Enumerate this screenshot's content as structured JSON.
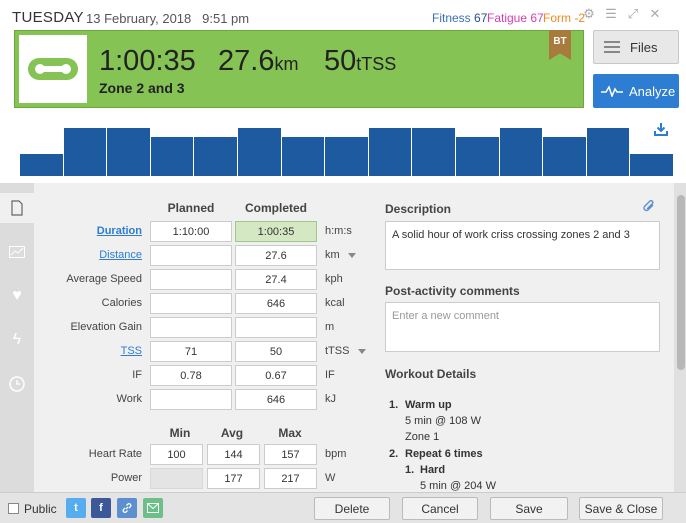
{
  "header": {
    "day": "TUESDAY",
    "date": "13 February, 2018",
    "time": "9:51 pm",
    "fitness_label": "Fitness",
    "fitness_value": "67",
    "fatigue_label": "Fatigue",
    "fatigue_value": "67",
    "form_label": "Form",
    "form_value": "-2",
    "icons": [
      "gear-icon",
      "menu-icon",
      "expand-icon",
      "close-icon"
    ]
  },
  "summary": {
    "duration": "1:00:35",
    "distance": "27.6",
    "distance_unit": "km",
    "tss": "50",
    "tss_unit": "tTSS",
    "title": "Zone 2 and 3",
    "badge": "BT",
    "sport_icon": "bike-icon",
    "accent_color": "#86c355"
  },
  "buttons": {
    "files": "Files",
    "analyze": "Analyze"
  },
  "workout_bars": [
    0.45,
    1.0,
    1.0,
    0.82,
    0.82,
    1.0,
    0.82,
    0.82,
    1.0,
    1.0,
    0.82,
    1.0,
    0.82,
    1.0,
    0.45
  ],
  "stats": {
    "planned_header": "Planned",
    "completed_header": "Completed",
    "rows": [
      {
        "label": "Duration",
        "planned": "1:10:00",
        "completed": "1:00:35",
        "unit": "h:m:s"
      },
      {
        "label": "Distance",
        "planned": "",
        "completed": "27.6",
        "unit": "km"
      },
      {
        "label": "Average Speed",
        "planned": "",
        "completed": "27.4",
        "unit": "kph"
      },
      {
        "label": "Calories",
        "planned": "",
        "completed": "646",
        "unit": "kcal"
      },
      {
        "label": "Elevation Gain",
        "planned": "",
        "completed": "",
        "unit": "m"
      },
      {
        "label": "TSS",
        "planned": "71",
        "completed": "50",
        "unit": "tTSS"
      },
      {
        "label": "IF",
        "planned": "0.78",
        "completed": "0.67",
        "unit": "IF"
      },
      {
        "label": "Work",
        "planned": "",
        "completed": "646",
        "unit": "kJ"
      }
    ],
    "min_header": "Min",
    "avg_header": "Avg",
    "max_header": "Max",
    "range_rows": [
      {
        "label": "Heart Rate",
        "min": "100",
        "avg": "144",
        "max": "157",
        "unit": "bpm"
      },
      {
        "label": "Power",
        "min": "",
        "avg": "177",
        "max": "217",
        "unit": "W"
      }
    ]
  },
  "description": {
    "title": "Description",
    "text": "A solid hour of work criss crossing zones 2 and 3"
  },
  "comments": {
    "title": "Post-activity comments",
    "placeholder": "Enter a new comment"
  },
  "workout_details": {
    "title": "Workout Details",
    "l1": "1.",
    "l1_title": "Warm up",
    "l1_a": "5 min @ 108 W",
    "l1_b": "Zone 1",
    "l2": "2.",
    "l2_title": "Repeat 6 times",
    "l2_1": "1.",
    "l2_1_title": "Hard",
    "l2_1_a": "5 min @ 204 W"
  },
  "footer": {
    "public_label": "Public",
    "share_icons": [
      "twitter-icon",
      "facebook-icon",
      "link-icon",
      "email-icon"
    ],
    "delete": "Delete",
    "cancel": "Cancel",
    "save": "Save",
    "save_close": "Save & Close"
  }
}
